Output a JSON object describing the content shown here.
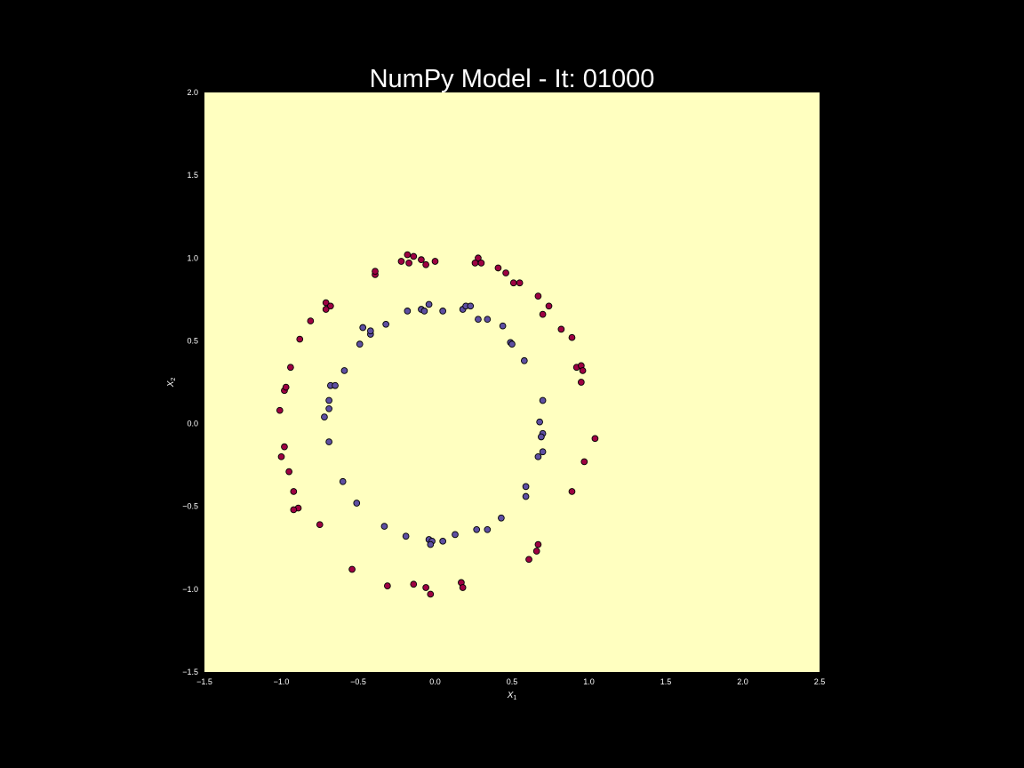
{
  "chart_data": {
    "type": "scatter",
    "title": "NumPy Model - It: 01000",
    "xlabel": "X",
    "xlabel_subscript": "1",
    "ylabel": "X",
    "ylabel_subscript": "2",
    "xlim": [
      -1.5,
      2.5
    ],
    "ylim": [
      -1.5,
      2.0
    ],
    "x_ticks": [
      -1.5,
      -1.0,
      -0.5,
      0.0,
      0.5,
      1.0,
      1.5,
      2.0,
      2.5
    ],
    "y_ticks": [
      -1.5,
      -1.0,
      -0.5,
      0.0,
      0.5,
      1.0,
      1.5,
      2.0
    ],
    "x_tick_labels": [
      "−1.5",
      "−1.0",
      "−0.5",
      "0.0",
      "0.5",
      "1.0",
      "1.5",
      "2.0",
      "2.5"
    ],
    "y_tick_labels": [
      "−1.5",
      "−1.0",
      "−0.5",
      "0.0",
      "0.5",
      "1.0",
      "1.5",
      "2.0"
    ],
    "grid": false,
    "colors": {
      "figure_background": "#000000",
      "plot_background": "#ffffc0",
      "outer_class": "#9e0142",
      "inner_class": "#5e4fa2",
      "marker_edge": "#000000",
      "text": "#ffffff"
    },
    "series": [
      {
        "class": "outer",
        "points": [
          [
            -0.18,
            1.02
          ],
          [
            -0.14,
            1.01
          ],
          [
            -0.09,
            0.99
          ],
          [
            -0.22,
            0.98
          ],
          [
            -0.17,
            0.97
          ],
          [
            -0.06,
            0.96
          ],
          [
            0.0,
            0.98
          ],
          [
            0.28,
            1.0
          ],
          [
            0.26,
            0.97
          ],
          [
            0.3,
            0.97
          ],
          [
            0.41,
            0.94
          ],
          [
            0.46,
            0.91
          ],
          [
            0.51,
            0.85
          ],
          [
            0.55,
            0.85
          ],
          [
            0.67,
            0.77
          ],
          [
            0.74,
            0.71
          ],
          [
            0.7,
            0.66
          ],
          [
            0.82,
            0.57
          ],
          [
            0.89,
            0.52
          ],
          [
            0.92,
            0.34
          ],
          [
            0.95,
            0.35
          ],
          [
            0.96,
            0.32
          ],
          [
            0.95,
            0.25
          ],
          [
            1.04,
            -0.09
          ],
          [
            0.97,
            -0.23
          ],
          [
            0.89,
            -0.41
          ],
          [
            0.67,
            -0.73
          ],
          [
            0.66,
            -0.77
          ],
          [
            0.61,
            -0.82
          ],
          [
            0.17,
            -0.96
          ],
          [
            0.18,
            -0.99
          ],
          [
            -0.06,
            -0.99
          ],
          [
            -0.03,
            -1.03
          ],
          [
            -0.14,
            -0.97
          ],
          [
            -0.31,
            -0.98
          ],
          [
            -0.54,
            -0.88
          ],
          [
            -0.75,
            -0.61
          ],
          [
            -0.89,
            -0.51
          ],
          [
            -0.92,
            -0.52
          ],
          [
            -0.92,
            -0.41
          ],
          [
            -0.95,
            -0.29
          ],
          [
            -0.98,
            -0.14
          ],
          [
            -1.0,
            -0.2
          ],
          [
            -1.01,
            0.08
          ],
          [
            -0.98,
            0.2
          ],
          [
            -0.97,
            0.22
          ],
          [
            -0.94,
            0.34
          ],
          [
            -0.88,
            0.51
          ],
          [
            -0.81,
            0.62
          ],
          [
            -0.71,
            0.73
          ],
          [
            -0.68,
            0.71
          ],
          [
            -0.71,
            0.69
          ],
          [
            -0.39,
            0.9
          ],
          [
            -0.39,
            0.92
          ]
        ]
      },
      {
        "class": "inner",
        "points": [
          [
            -0.04,
            0.72
          ],
          [
            -0.18,
            0.68
          ],
          [
            -0.09,
            0.69
          ],
          [
            -0.07,
            0.68
          ],
          [
            0.05,
            0.68
          ],
          [
            0.18,
            0.69
          ],
          [
            0.2,
            0.71
          ],
          [
            0.23,
            0.71
          ],
          [
            0.28,
            0.63
          ],
          [
            0.34,
            0.63
          ],
          [
            0.44,
            0.59
          ],
          [
            0.49,
            0.49
          ],
          [
            0.5,
            0.48
          ],
          [
            0.58,
            0.38
          ],
          [
            0.7,
            0.14
          ],
          [
            0.68,
            0.01
          ],
          [
            0.7,
            -0.06
          ],
          [
            0.69,
            -0.08
          ],
          [
            0.7,
            -0.17
          ],
          [
            0.67,
            -0.2
          ],
          [
            0.59,
            -0.38
          ],
          [
            0.59,
            -0.44
          ],
          [
            0.43,
            -0.57
          ],
          [
            0.34,
            -0.64
          ],
          [
            0.27,
            -0.64
          ],
          [
            0.13,
            -0.67
          ],
          [
            0.05,
            -0.71
          ],
          [
            -0.04,
            -0.7
          ],
          [
            -0.02,
            -0.71
          ],
          [
            -0.03,
            -0.73
          ],
          [
            -0.19,
            -0.68
          ],
          [
            -0.33,
            -0.62
          ],
          [
            -0.51,
            -0.48
          ],
          [
            -0.6,
            -0.35
          ],
          [
            -0.69,
            -0.11
          ],
          [
            -0.72,
            0.04
          ],
          [
            -0.69,
            0.09
          ],
          [
            -0.69,
            0.14
          ],
          [
            -0.68,
            0.23
          ],
          [
            -0.65,
            0.23
          ],
          [
            -0.59,
            0.32
          ],
          [
            -0.49,
            0.48
          ],
          [
            -0.47,
            0.58
          ],
          [
            -0.42,
            0.54
          ],
          [
            -0.42,
            0.56
          ],
          [
            -0.32,
            0.6
          ]
        ]
      }
    ]
  }
}
